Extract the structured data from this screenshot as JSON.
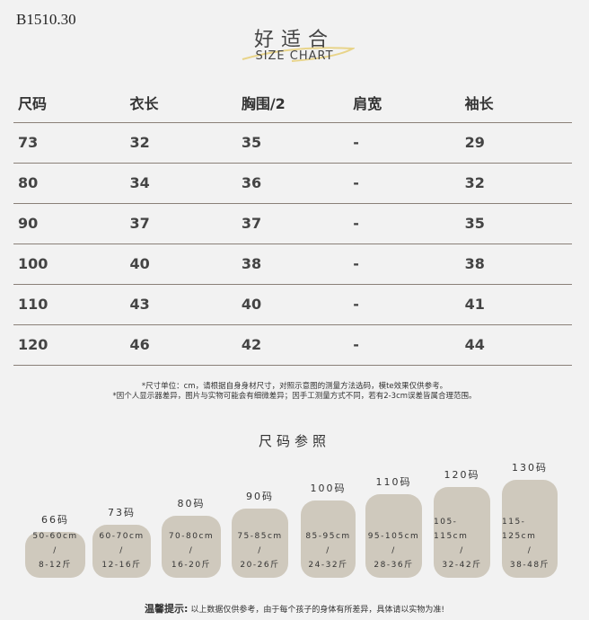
{
  "code": "B1510.30",
  "title_cn": "好适合",
  "title_en": "SIZE CHART",
  "table": {
    "headers": [
      "尺码",
      "衣长",
      "胸围/2",
      "肩宽",
      "袖长"
    ],
    "rows": [
      [
        "73",
        "32",
        "35",
        "-",
        "29"
      ],
      [
        "80",
        "34",
        "36",
        "-",
        "32"
      ],
      [
        "90",
        "37",
        "37",
        "-",
        "35"
      ],
      [
        "100",
        "40",
        "38",
        "-",
        "38"
      ],
      [
        "110",
        "43",
        "40",
        "-",
        "41"
      ],
      [
        "120",
        "46",
        "42",
        "-",
        "44"
      ]
    ]
  },
  "notes": [
    "*尺寸单位：cm，请根据自身身材尺寸，对照示意图的测量方法选码，模te效果仅供参考。",
    "*因个人显示器差异，图片与实物可能会有细微差异；因手工测量方式不同，若有2-3cm误差皆属合理范围。"
  ],
  "ref_title": "尺码参照",
  "refs": [
    {
      "size": "66码",
      "height": "50-60cm",
      "sep": "/",
      "weight": "8-12斤"
    },
    {
      "size": "73码",
      "height": "60-70cm",
      "sep": "/",
      "weight": "12-16斤"
    },
    {
      "size": "80码",
      "height": "70-80cm",
      "sep": "/",
      "weight": "16-20斤"
    },
    {
      "size": "90码",
      "height": "75-85cm",
      "sep": "/",
      "weight": "20-26斤"
    },
    {
      "size": "100码",
      "height": "85-95cm",
      "sep": "/",
      "weight": "24-32斤"
    },
    {
      "size": "110码",
      "height": "95-105cm",
      "sep": "/",
      "weight": "28-36斤"
    },
    {
      "size": "120码",
      "height": "105-115cm",
      "sep": "/",
      "weight": "32-42斤"
    },
    {
      "size": "130码",
      "height": "115-125cm",
      "sep": "/",
      "weight": "38-48斤"
    }
  ],
  "tip_label": "温馨提示:",
  "tip_text": "以上数据仅供参考，由于每个孩子的身体有所差异，具体请以实物为准!",
  "colors": {
    "box": "#cfc9bd",
    "swoosh": "#e8d48a",
    "line": "#8a8078"
  }
}
